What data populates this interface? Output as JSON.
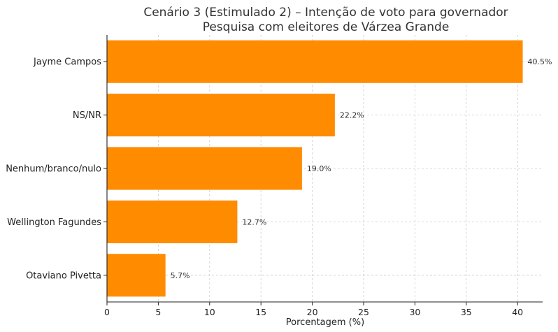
{
  "chart_data": {
    "type": "bar",
    "orientation": "horizontal",
    "title": "Cenário 3 (Estimulado 2) – Intenção de voto para governador",
    "subtitle": "Pesquisa com eleitores de Várzea Grande",
    "xlabel": "Porcentagem (%)",
    "ylabel": "",
    "categories": [
      "Jayme Campos",
      "NS/NR",
      "Nenhum/branco/nulo",
      "Wellington Fagundes",
      "Otaviano Pivetta"
    ],
    "values": [
      40.5,
      22.2,
      19.0,
      12.7,
      5.7
    ],
    "data_labels": [
      "40.5%",
      "22.2%",
      "19.0%",
      "12.7%",
      "5.7%"
    ],
    "xlim": [
      0,
      42.5
    ],
    "xticks": [
      0,
      5,
      10,
      15,
      20,
      25,
      30,
      35,
      40
    ],
    "grid": true,
    "bar_color": "#ff8c00",
    "grid_color": "#cccccc"
  }
}
